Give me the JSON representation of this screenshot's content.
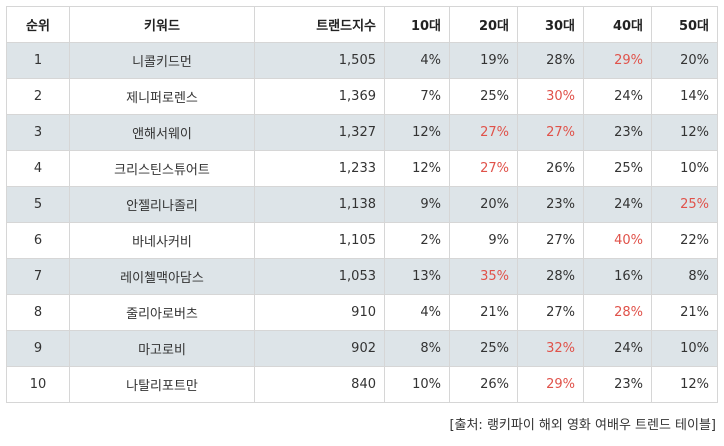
{
  "table": {
    "headers": [
      "순위",
      "키워드",
      "트랜드지수",
      "10대",
      "20대",
      "30대",
      "40대",
      "50대"
    ],
    "highlight_color": "#e0524a",
    "shaded_row_color": "#dde4e8",
    "rows": [
      {
        "rank": "1",
        "keyword": "니콜키드먼",
        "index": "1,505",
        "age10": "4%",
        "age20": "19%",
        "age30": "28%",
        "age40": "29%",
        "age50": "20%",
        "highlighted": [
          "age40"
        ]
      },
      {
        "rank": "2",
        "keyword": "제니퍼로렌스",
        "index": "1,369",
        "age10": "7%",
        "age20": "25%",
        "age30": "30%",
        "age40": "24%",
        "age50": "14%",
        "highlighted": [
          "age30"
        ]
      },
      {
        "rank": "3",
        "keyword": "앤해서웨이",
        "index": "1,327",
        "age10": "12%",
        "age20": "27%",
        "age30": "27%",
        "age40": "23%",
        "age50": "12%",
        "highlighted": [
          "age20",
          "age30"
        ]
      },
      {
        "rank": "4",
        "keyword": "크리스틴스튜어트",
        "index": "1,233",
        "age10": "12%",
        "age20": "27%",
        "age30": "26%",
        "age40": "25%",
        "age50": "10%",
        "highlighted": [
          "age20"
        ]
      },
      {
        "rank": "5",
        "keyword": "안젤리나졸리",
        "index": "1,138",
        "age10": "9%",
        "age20": "20%",
        "age30": "23%",
        "age40": "24%",
        "age50": "25%",
        "highlighted": [
          "age50"
        ]
      },
      {
        "rank": "6",
        "keyword": "바네사커비",
        "index": "1,105",
        "age10": "2%",
        "age20": "9%",
        "age30": "27%",
        "age40": "40%",
        "age50": "22%",
        "highlighted": [
          "age40"
        ]
      },
      {
        "rank": "7",
        "keyword": "레이첼맥아담스",
        "index": "1,053",
        "age10": "13%",
        "age20": "35%",
        "age30": "28%",
        "age40": "16%",
        "age50": "8%",
        "highlighted": [
          "age20"
        ]
      },
      {
        "rank": "8",
        "keyword": "줄리아로버츠",
        "index": "910",
        "age10": "4%",
        "age20": "21%",
        "age30": "27%",
        "age40": "28%",
        "age50": "21%",
        "highlighted": [
          "age40"
        ]
      },
      {
        "rank": "9",
        "keyword": "마고로비",
        "index": "902",
        "age10": "8%",
        "age20": "25%",
        "age30": "32%",
        "age40": "24%",
        "age50": "10%",
        "highlighted": [
          "age30"
        ]
      },
      {
        "rank": "10",
        "keyword": "나탈리포트만",
        "index": "840",
        "age10": "10%",
        "age20": "26%",
        "age30": "29%",
        "age40": "23%",
        "age50": "12%",
        "highlighted": [
          "age30"
        ]
      }
    ]
  },
  "caption": "[출처: 랭키파이 해외 영화 여배우 트렌드 테이블]"
}
